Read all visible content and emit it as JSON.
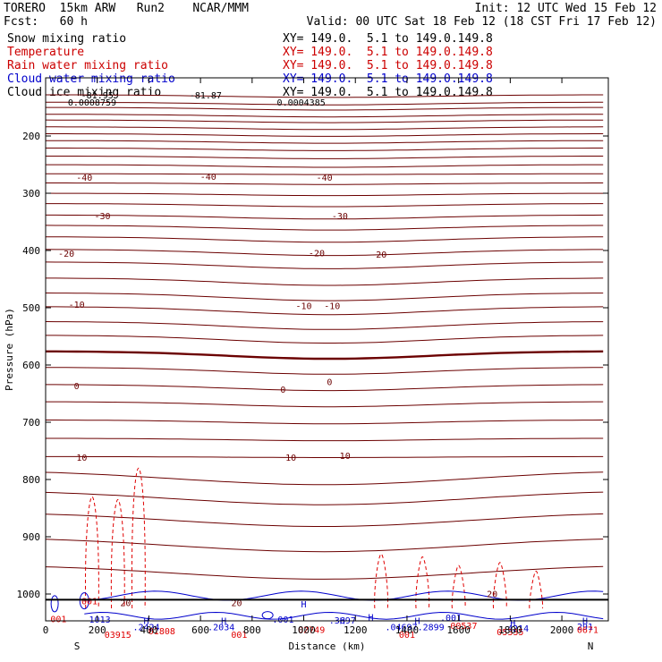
{
  "header": {
    "model": "TORERO  15km ARW   Run2    NCAR/MMM",
    "init": "Init: 12 UTC Wed 15 Feb 12",
    "fcst": "Fcst:   60 h",
    "valid": "Valid: 00 UTC Sat 18 Feb 12 (18 CST Fri 17 Feb 12)",
    "fields": [
      {
        "name": "Snow mixing ratio",
        "xy": "XY= 149.0.  5.1 to 149.0.149.8",
        "color": "#000000"
      },
      {
        "name": "Temperature",
        "xy": "XY= 149.0.  5.1 to 149.0.149.8",
        "color": "#cc0000"
      },
      {
        "name": "Rain water mixing ratio",
        "xy": "XY= 149.0.  5.1 to 149.0.149.8",
        "color": "#cc0000"
      },
      {
        "name": "Cloud water mixing ratio",
        "xy": "XY= 149.0.  5.1 to 149.0.149.8",
        "color": "#0000cc"
      },
      {
        "name": "Cloud ice mixing ratio",
        "xy": "XY= 149.0.  5.1 to 149.0.149.8",
        "color": "#000000"
      }
    ]
  },
  "colors": {
    "temperature": "#6b0000",
    "rain": "#e00000",
    "cloud_water": "#0000cc",
    "frame": "#000000"
  },
  "chart_data": {
    "type": "line",
    "ylabel": "Pressure (hPa)",
    "xlabel": "Distance (km)",
    "y_ticks": [
      200,
      300,
      400,
      500,
      600,
      700,
      800,
      900,
      1000
    ],
    "x_ticks": [
      0,
      200,
      400,
      600,
      800,
      1000,
      1200,
      1400,
      1600,
      1800,
      2000
    ],
    "ylim": [
      100,
      1050
    ],
    "xlim": [
      0,
      2180
    ],
    "x_end_labels": {
      "left": "S",
      "right": "N"
    },
    "temperature_contour_labels": [
      {
        "x": 150,
        "p": 272,
        "text": "-40"
      },
      {
        "x": 630,
        "p": 270,
        "text": "-40"
      },
      {
        "x": 1080,
        "p": 272,
        "text": "-40"
      },
      {
        "x": 220,
        "p": 339,
        "text": "-30"
      },
      {
        "x": 1140,
        "p": 339,
        "text": "-30"
      },
      {
        "x": 80,
        "p": 405,
        "text": "-20"
      },
      {
        "x": 1050,
        "p": 404,
        "text": "-20"
      },
      {
        "x": 1290,
        "p": 406,
        "text": "-20"
      },
      {
        "x": 120,
        "p": 494,
        "text": "-10"
      },
      {
        "x": 1000,
        "p": 496,
        "text": "-10"
      },
      {
        "x": 1110,
        "p": 496,
        "text": "-10"
      },
      {
        "x": 120,
        "p": 636,
        "text": "0"
      },
      {
        "x": 920,
        "p": 642,
        "text": "0"
      },
      {
        "x": 1100,
        "p": 629,
        "text": "0"
      },
      {
        "x": 140,
        "p": 761,
        "text": "10"
      },
      {
        "x": 950,
        "p": 761,
        "text": "10"
      },
      {
        "x": 1160,
        "p": 758,
        "text": "10"
      },
      {
        "x": 310,
        "p": 1015,
        "text": "20"
      },
      {
        "x": 740,
        "p": 1015,
        "text": "20"
      },
      {
        "x": 1730,
        "p": 999,
        "text": "20"
      }
    ],
    "top_annotations": [
      {
        "x": 200,
        "p": 128,
        "text": "-81.95"
      },
      {
        "x": 620,
        "p": 128,
        "text": "-81.87"
      },
      {
        "x": 180,
        "p": 141,
        "text": "0.0008759"
      },
      {
        "x": 990,
        "p": 141,
        "text": "0.0004385"
      }
    ],
    "extrema_labels": [
      {
        "x": 50,
        "p": 1043,
        "text": "001",
        "series": "rain"
      },
      {
        "x": 170,
        "p": 1012,
        "text": "001",
        "series": "rain"
      },
      {
        "x": 210,
        "p": 1044,
        "text": "1013",
        "series": "cloud_water"
      },
      {
        "x": 280,
        "p": 1070,
        "text": "03915",
        "series": "rain"
      },
      {
        "x": 390,
        "p": 1057,
        "text": ".2424",
        "series": "cloud_water"
      },
      {
        "x": 450,
        "p": 1064,
        "text": "01808",
        "series": "rain"
      },
      {
        "x": 680,
        "p": 1057,
        "text": ".2034",
        "series": "cloud_water"
      },
      {
        "x": 750,
        "p": 1070,
        "text": "001",
        "series": "rain"
      },
      {
        "x": 920,
        "p": 1044,
        "text": ".001",
        "series": "cloud_water"
      },
      {
        "x": 1030,
        "p": 1062,
        "text": "02749",
        "series": "rain"
      },
      {
        "x": 1150,
        "p": 1045,
        "text": ".3697",
        "series": "cloud_water"
      },
      {
        "x": 1430,
        "p": 1057,
        "text": ".04697.2899",
        "series": "cloud_water"
      },
      {
        "x": 1400,
        "p": 1070,
        "text": "001",
        "series": "rain"
      },
      {
        "x": 1570,
        "p": 1041,
        "text": ".001",
        "series": "cloud_water"
      },
      {
        "x": 1620,
        "p": 1055,
        "text": "00537",
        "series": "rain"
      },
      {
        "x": 1820,
        "p": 1059,
        "text": ".4214",
        "series": "cloud_water"
      },
      {
        "x": 1800,
        "p": 1066,
        "text": "05335",
        "series": "rain"
      },
      {
        "x": 2090,
        "p": 1056,
        "text": "291",
        "series": "cloud_water"
      },
      {
        "x": 2100,
        "p": 1062,
        "text": "0671",
        "series": "rain"
      }
    ],
    "high_markers": [
      {
        "x": 390,
        "p": 1046
      },
      {
        "x": 690,
        "p": 1046
      },
      {
        "x": 1150,
        "p": 1046
      },
      {
        "x": 1440,
        "p": 1046
      },
      {
        "x": 2090,
        "p": 1046
      },
      {
        "x": 1000,
        "p": 1017
      },
      {
        "x": 1260,
        "p": 1040
      },
      {
        "x": 1810,
        "p": 1050
      }
    ]
  }
}
